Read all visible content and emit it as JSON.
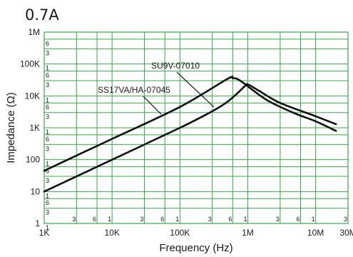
{
  "chart_data": {
    "type": "line",
    "title": "0.7A",
    "xlabel": "Frequency (Hz)",
    "ylabel": "Impedance (Ω)",
    "x_scale": "log",
    "y_scale": "log",
    "xlim": [
      1000,
      30000000
    ],
    "ylim": [
      1,
      1000000
    ],
    "grid": true,
    "x_major_ticks": [
      {
        "value": 1000,
        "label": "1K"
      },
      {
        "value": 10000,
        "label": "10K"
      },
      {
        "value": 100000,
        "label": "100K"
      },
      {
        "value": 1000000,
        "label": "1M"
      },
      {
        "value": 10000000,
        "label": "10M"
      },
      {
        "value": 30000000,
        "label": "30M"
      }
    ],
    "x_minor_ticks": [
      {
        "value": 3000,
        "label": "3"
      },
      {
        "value": 6000,
        "label": "6"
      },
      {
        "value": 10000,
        "label": "1"
      },
      {
        "value": 30000,
        "label": "3"
      },
      {
        "value": 60000,
        "label": "6"
      },
      {
        "value": 100000,
        "label": "1"
      },
      {
        "value": 300000,
        "label": "3"
      },
      {
        "value": 600000,
        "label": "6"
      },
      {
        "value": 1000000,
        "label": "1"
      },
      {
        "value": 3000000,
        "label": "3"
      },
      {
        "value": 6000000,
        "label": "6"
      },
      {
        "value": 10000000,
        "label": "1"
      },
      {
        "value": 30000000,
        "label": "3"
      }
    ],
    "y_major_ticks": [
      {
        "value": 1,
        "label": "1"
      },
      {
        "value": 10,
        "label": "10"
      },
      {
        "value": 100,
        "label": "100"
      },
      {
        "value": 1000,
        "label": "1K"
      },
      {
        "value": 10000,
        "label": "10K"
      },
      {
        "value": 100000,
        "label": "100K"
      },
      {
        "value": 1000000,
        "label": "1M"
      }
    ],
    "y_minor_ticks": [
      {
        "value": 1,
        "label": "1"
      },
      {
        "value": 3,
        "label": "3"
      },
      {
        "value": 6,
        "label": "6"
      },
      {
        "value": 10,
        "label": "1"
      },
      {
        "value": 30,
        "label": "3"
      },
      {
        "value": 60,
        "label": "6"
      },
      {
        "value": 100,
        "label": "1"
      },
      {
        "value": 300,
        "label": "3"
      },
      {
        "value": 600,
        "label": "6"
      },
      {
        "value": 1000,
        "label": "1"
      },
      {
        "value": 3000,
        "label": "3"
      },
      {
        "value": 6000,
        "label": "6"
      },
      {
        "value": 10000,
        "label": "1"
      },
      {
        "value": 30000,
        "label": "3"
      },
      {
        "value": 60000,
        "label": "6"
      },
      {
        "value": 100000,
        "label": "1"
      },
      {
        "value": 300000,
        "label": "3"
      },
      {
        "value": 600000,
        "label": "6"
      },
      {
        "value": 1000000,
        "label": "1"
      },
      {
        "value": 3000000,
        "label": "3"
      },
      {
        "value": 6000000,
        "label": "6"
      }
    ],
    "series": [
      {
        "name": "SS17VA/HA-07045",
        "x": [
          1000,
          10000,
          100000,
          500000,
          600000,
          700000,
          900000,
          1000000,
          2000000,
          5000000,
          10000000,
          20000000
        ],
        "y": [
          45,
          450,
          4500,
          34000,
          36000,
          34000,
          24000,
          20000,
          7000,
          2800,
          1600,
          800
        ]
      },
      {
        "name": "SU9V-07010",
        "x": [
          1000,
          10000,
          100000,
          300000,
          500000,
          700000,
          900000,
          1000000,
          1500000,
          3000000,
          10000000,
          20000000
        ],
        "y": [
          10,
          100,
          1000,
          3300,
          6500,
          12000,
          20000,
          23000,
          14000,
          6000,
          2300,
          1300
        ]
      }
    ],
    "annotations": [
      {
        "text": "SU9V-07010",
        "series": "SS17VA/HA-07045"
      },
      {
        "text": "SS17VA/HA-07045",
        "series": "SU9V-07010"
      }
    ],
    "colors": {
      "grid": "#3aa84a",
      "curve": "#111111"
    }
  }
}
